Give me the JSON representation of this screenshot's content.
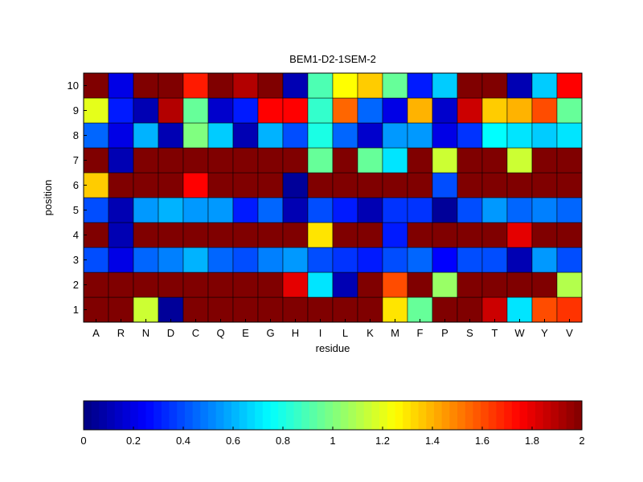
{
  "chart_data": {
    "type": "heatmap",
    "title": "BEM1-D2-1SEM-2",
    "xlabel": "residue",
    "ylabel": "position",
    "x_categories": [
      "A",
      "R",
      "N",
      "D",
      "C",
      "Q",
      "E",
      "G",
      "H",
      "I",
      "L",
      "K",
      "M",
      "F",
      "P",
      "S",
      "T",
      "W",
      "Y",
      "V"
    ],
    "y_categories": [
      "1",
      "2",
      "3",
      "4",
      "5",
      "6",
      "7",
      "8",
      "9",
      "10"
    ],
    "values": [
      [
        2.0,
        2.0,
        1.15,
        0.05,
        2.0,
        2.0,
        2.0,
        2.0,
        2.0,
        2.0,
        2.0,
        2.0,
        1.3,
        0.95,
        2.0,
        2.0,
        1.85,
        0.7,
        1.6,
        1.65
      ],
      [
        2.0,
        2.0,
        2.0,
        2.0,
        2.0,
        2.0,
        2.0,
        2.0,
        1.8,
        0.7,
        0.1,
        2.0,
        1.6,
        2.0,
        1.05,
        2.0,
        2.0,
        2.0,
        2.0,
        1.1
      ],
      [
        0.4,
        0.2,
        0.45,
        0.5,
        0.6,
        0.45,
        0.4,
        0.5,
        0.55,
        0.4,
        0.35,
        0.3,
        0.4,
        0.45,
        0.25,
        0.4,
        0.4,
        0.1,
        0.55,
        0.4
      ],
      [
        2.0,
        0.1,
        2.0,
        2.0,
        2.0,
        2.0,
        2.0,
        2.0,
        2.0,
        1.3,
        2.0,
        2.0,
        0.3,
        2.0,
        2.0,
        2.0,
        2.0,
        1.8,
        2.0,
        2.0
      ],
      [
        0.4,
        0.1,
        0.55,
        0.6,
        0.55,
        0.55,
        0.3,
        0.45,
        0.1,
        0.4,
        0.3,
        0.1,
        0.35,
        0.35,
        0.05,
        0.4,
        0.55,
        0.45,
        0.5,
        0.45
      ],
      [
        1.35,
        2.0,
        2.0,
        2.0,
        1.75,
        2.0,
        2.0,
        2.0,
        0.05,
        2.0,
        2.0,
        2.0,
        2.0,
        2.0,
        0.4,
        2.0,
        2.0,
        2.0,
        2.0,
        2.0
      ],
      [
        2.0,
        0.1,
        2.0,
        2.0,
        2.0,
        2.0,
        2.0,
        2.0,
        2.0,
        0.95,
        2.0,
        0.95,
        0.7,
        2.0,
        1.15,
        2.0,
        2.0,
        1.15,
        2.0,
        2.0
      ],
      [
        0.45,
        0.2,
        0.6,
        0.1,
        1.0,
        0.65,
        0.1,
        0.6,
        0.4,
        0.8,
        0.45,
        0.15,
        0.55,
        0.55,
        0.2,
        0.35,
        0.75,
        0.7,
        0.65,
        0.7
      ],
      [
        1.2,
        0.3,
        0.1,
        1.9,
        0.95,
        0.15,
        0.3,
        1.75,
        1.75,
        0.85,
        1.55,
        0.45,
        0.2,
        1.4,
        0.15,
        1.85,
        1.35,
        1.4,
        1.6,
        0.95
      ],
      [
        2.0,
        0.2,
        2.0,
        2.0,
        1.7,
        2.0,
        1.9,
        2.0,
        0.1,
        0.9,
        1.25,
        1.35,
        0.95,
        0.3,
        0.65,
        2.0,
        2.0,
        0.1,
        0.65,
        1.75
      ]
    ],
    "colormap": "jet",
    "clim": [
      0,
      2
    ],
    "colorbar": {
      "orientation": "horizontal",
      "placement": "bottom",
      "ticks": [
        0,
        0.2,
        0.4,
        0.6,
        0.8,
        1,
        1.2,
        1.4,
        1.6,
        1.8,
        2
      ]
    }
  }
}
